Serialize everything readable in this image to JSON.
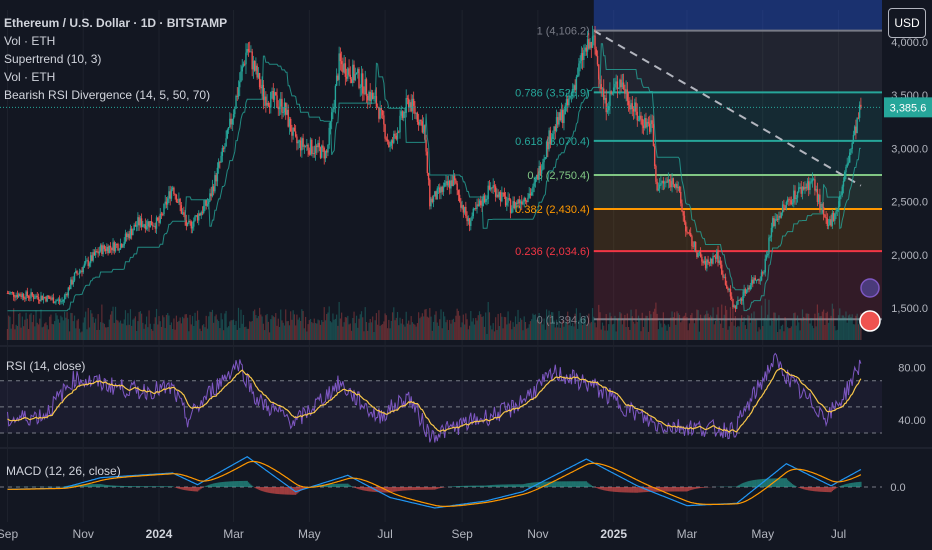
{
  "header": {
    "title": "Ethereum / U.S. Dollar · 1D · BITSTAMP",
    "indicators": [
      "Vol · ETH",
      "Supertrend (10, 3)",
      "Vol · ETH",
      "Bearish RSI Divergence (14, 5, 50, 70)"
    ],
    "currency_button": "USD"
  },
  "colors": {
    "background": "#131722",
    "up": "#26a69a",
    "down": "#ef5350",
    "rsi_line": "#7e57c2",
    "rsi_ma": "#f7c64a",
    "macd_line": "#2196f3",
    "signal_line": "#ff9800"
  },
  "chart_data": [
    {
      "type": "candlestick",
      "pane": "price",
      "x_tick_labels": [
        "Sep",
        "Nov",
        "2024",
        "Mar",
        "May",
        "Jul",
        "Sep",
        "Nov",
        "2025",
        "Mar",
        "May",
        "Jul"
      ],
      "y_tick_labels": [
        "1,500.0",
        "2,000.0",
        "2,500.0",
        "3,000.0",
        "3,500.0",
        "4,000.0"
      ],
      "ylim": [
        1200,
        4300
      ],
      "last_price_label": "3,385.6",
      "last_price": 3385.6,
      "close_series": [
        {
          "x": "2023-09-01",
          "y": 1640
        },
        {
          "x": "2023-09-15",
          "y": 1620
        },
        {
          "x": "2023-10-01",
          "y": 1600
        },
        {
          "x": "2023-10-15",
          "y": 1560
        },
        {
          "x": "2023-10-25",
          "y": 1800
        },
        {
          "x": "2023-11-15",
          "y": 2050
        },
        {
          "x": "2023-12-01",
          "y": 2100
        },
        {
          "x": "2023-12-15",
          "y": 2300
        },
        {
          "x": "2024-01-01",
          "y": 2300
        },
        {
          "x": "2024-01-12",
          "y": 2650
        },
        {
          "x": "2024-01-24",
          "y": 2250
        },
        {
          "x": "2024-02-10",
          "y": 2500
        },
        {
          "x": "2024-02-25",
          "y": 3100
        },
        {
          "x": "2024-03-12",
          "y": 3950
        },
        {
          "x": "2024-03-25",
          "y": 3500
        },
        {
          "x": "2024-04-10",
          "y": 3400
        },
        {
          "x": "2024-04-20",
          "y": 3050
        },
        {
          "x": "2024-05-05",
          "y": 3000
        },
        {
          "x": "2024-05-15",
          "y": 2950
        },
        {
          "x": "2024-05-25",
          "y": 3800
        },
        {
          "x": "2024-06-10",
          "y": 3650
        },
        {
          "x": "2024-06-25",
          "y": 3400
        },
        {
          "x": "2024-07-05",
          "y": 3000
        },
        {
          "x": "2024-07-20",
          "y": 3450
        },
        {
          "x": "2024-08-01",
          "y": 3200
        },
        {
          "x": "2024-08-06",
          "y": 2500
        },
        {
          "x": "2024-08-25",
          "y": 2700
        },
        {
          "x": "2024-09-06",
          "y": 2300
        },
        {
          "x": "2024-09-25",
          "y": 2650
        },
        {
          "x": "2024-10-10",
          "y": 2450
        },
        {
          "x": "2024-10-28",
          "y": 2600
        },
        {
          "x": "2024-11-10",
          "y": 3100
        },
        {
          "x": "2024-11-25",
          "y": 3400
        },
        {
          "x": "2024-12-08",
          "y": 3900
        },
        {
          "x": "2024-12-16",
          "y": 4000
        },
        {
          "x": "2024-12-25",
          "y": 3400
        },
        {
          "x": "2025-01-06",
          "y": 3650
        },
        {
          "x": "2025-01-20",
          "y": 3300
        },
        {
          "x": "2025-02-01",
          "y": 3200
        },
        {
          "x": "2025-02-04",
          "y": 2650
        },
        {
          "x": "2025-02-20",
          "y": 2700
        },
        {
          "x": "2025-03-01",
          "y": 2200
        },
        {
          "x": "2025-03-15",
          "y": 1900
        },
        {
          "x": "2025-03-25",
          "y": 2000
        },
        {
          "x": "2025-04-08",
          "y": 1500
        },
        {
          "x": "2025-04-22",
          "y": 1750
        },
        {
          "x": "2025-05-01",
          "y": 1820
        },
        {
          "x": "2025-05-09",
          "y": 2300
        },
        {
          "x": "2025-05-25",
          "y": 2550
        },
        {
          "x": "2025-06-10",
          "y": 2700
        },
        {
          "x": "2025-06-22",
          "y": 2250
        },
        {
          "x": "2025-07-01",
          "y": 2480
        },
        {
          "x": "2025-07-10",
          "y": 2950
        },
        {
          "x": "2025-07-19",
          "y": 3385.6
        }
      ]
    },
    {
      "type": "fibonacci_retracement",
      "pane": "price",
      "levels": [
        {
          "ratio_label": "1",
          "price": 4106.2,
          "label": "1 (4,106.2)",
          "color": "#787b86"
        },
        {
          "ratio_label": "0.786",
          "price": 3525.9,
          "label": "0.786 (3,525.9)",
          "color": "#26a69a"
        },
        {
          "ratio_label": "0.618",
          "price": 3070.4,
          "label": "0.618 (3,070.4)",
          "color": "#26a69a"
        },
        {
          "ratio_label": "0.5",
          "price": 2750.4,
          "label": "0.5 (2,750.4)",
          "color": "#81c784"
        },
        {
          "ratio_label": "0.382",
          "price": 2430.4,
          "label": "0.382 (2,430.4)",
          "color": "#ff9800"
        },
        {
          "ratio_label": "0.236",
          "price": 2034.6,
          "label": "0.236 (2,034.6)",
          "color": "#f23645"
        },
        {
          "ratio_label": "0",
          "price": 1394.6,
          "label": "0 (1,394.6)",
          "color": "#787b86"
        }
      ],
      "start_x": "2024-12-16",
      "trendline": [
        {
          "x": "2024-12-16",
          "y": 4106.2
        },
        {
          "x": "2025-07-19",
          "y": 2650
        }
      ]
    },
    {
      "type": "line",
      "pane": "rsi",
      "title": "RSI (14, close)",
      "y_tick_labels": [
        "40.00",
        "80.00"
      ],
      "bands": [
        30,
        50,
        70
      ],
      "ylim": [
        20,
        92
      ],
      "series": [
        {
          "x": "2023-09-01",
          "y": 40
        },
        {
          "x": "2023-10-01",
          "y": 44
        },
        {
          "x": "2023-10-25",
          "y": 72
        },
        {
          "x": "2023-11-15",
          "y": 68
        },
        {
          "x": "2023-12-15",
          "y": 62
        },
        {
          "x": "2024-01-12",
          "y": 64
        },
        {
          "x": "2024-01-24",
          "y": 40
        },
        {
          "x": "2024-02-10",
          "y": 60
        },
        {
          "x": "2024-03-05",
          "y": 84
        },
        {
          "x": "2024-03-20",
          "y": 55
        },
        {
          "x": "2024-04-20",
          "y": 38
        },
        {
          "x": "2024-05-25",
          "y": 68
        },
        {
          "x": "2024-06-25",
          "y": 42
        },
        {
          "x": "2024-07-20",
          "y": 58
        },
        {
          "x": "2024-08-06",
          "y": 28
        },
        {
          "x": "2024-09-06",
          "y": 38
        },
        {
          "x": "2024-10-10",
          "y": 48
        },
        {
          "x": "2024-11-15",
          "y": 76
        },
        {
          "x": "2024-12-16",
          "y": 66
        },
        {
          "x": "2025-01-06",
          "y": 52
        },
        {
          "x": "2025-02-04",
          "y": 36
        },
        {
          "x": "2025-03-10",
          "y": 34
        },
        {
          "x": "2025-04-08",
          "y": 32
        },
        {
          "x": "2025-05-10",
          "y": 86
        },
        {
          "x": "2025-06-01",
          "y": 60
        },
        {
          "x": "2025-06-22",
          "y": 42
        },
        {
          "x": "2025-07-05",
          "y": 58
        },
        {
          "x": "2025-07-19",
          "y": 84
        }
      ]
    },
    {
      "type": "line",
      "pane": "macd",
      "title": "MACD (12, 26, close)",
      "y_tick_labels": [
        "0.0"
      ],
      "ylim": [
        -300,
        300
      ],
      "series": [
        {
          "name": "MACD",
          "values": [
            {
              "x": "2023-09-01",
              "y": -20
            },
            {
              "x": "2023-10-15",
              "y": -10
            },
            {
              "x": "2023-11-15",
              "y": 80
            },
            {
              "x": "2024-01-12",
              "y": 120
            },
            {
              "x": "2024-02-01",
              "y": 20
            },
            {
              "x": "2024-03-12",
              "y": 260
            },
            {
              "x": "2024-04-20",
              "y": -40
            },
            {
              "x": "2024-06-01",
              "y": 100
            },
            {
              "x": "2024-07-05",
              "y": -90
            },
            {
              "x": "2024-08-10",
              "y": -180
            },
            {
              "x": "2024-09-20",
              "y": -120
            },
            {
              "x": "2024-10-20",
              "y": -40
            },
            {
              "x": "2024-12-10",
              "y": 240
            },
            {
              "x": "2025-01-20",
              "y": 10
            },
            {
              "x": "2025-03-01",
              "y": -160
            },
            {
              "x": "2025-04-10",
              "y": -140
            },
            {
              "x": "2025-05-20",
              "y": 200
            },
            {
              "x": "2025-06-25",
              "y": 10
            },
            {
              "x": "2025-07-19",
              "y": 150
            }
          ]
        }
      ]
    }
  ]
}
